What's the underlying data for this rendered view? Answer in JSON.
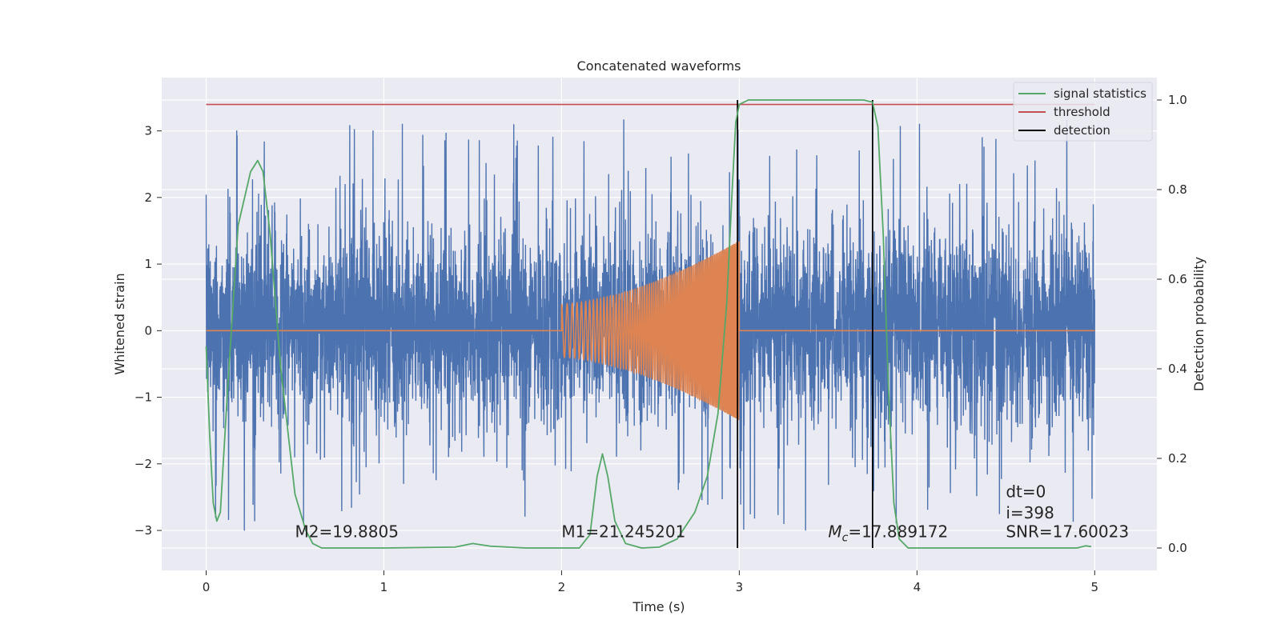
{
  "chart_data": {
    "type": "line",
    "title": "Concatenated waveforms",
    "xlabel": "Time (s)",
    "ylabel": "Whitened strain",
    "ylabel_right": "Detection probability",
    "xlim": [
      -0.25,
      5.35
    ],
    "ylim": [
      -3.6,
      3.8
    ],
    "ylim_right": [
      -0.05,
      1.05
    ],
    "x_ticks": [
      0,
      1,
      2,
      3,
      4,
      5
    ],
    "y_ticks": [
      -3,
      -2,
      -1,
      0,
      1,
      2,
      3
    ],
    "y_ticks_right": [
      0.0,
      0.2,
      0.4,
      0.6,
      0.8,
      1.0
    ],
    "x_tick_labels": [
      "0",
      "1",
      "2",
      "3",
      "4",
      "5"
    ],
    "y_tick_labels": [
      "−3",
      "−2",
      "−1",
      "0",
      "1",
      "2",
      "3"
    ],
    "y_tick_labels_right": [
      "0.0",
      "0.2",
      "0.4",
      "0.6",
      "0.8",
      "1.0"
    ],
    "grid": true,
    "legend_position": "top-right",
    "colors": {
      "background": "#eaeaf2",
      "noise": "#4c72b0",
      "injection": "#dd8452",
      "signal_statistics": "#55a868",
      "threshold": "#c44e52",
      "detection": "#000000"
    },
    "series": [
      {
        "name": "signal statistics",
        "axis": "right",
        "points": [
          [
            0.0,
            0.45
          ],
          [
            0.02,
            0.25
          ],
          [
            0.04,
            0.1
          ],
          [
            0.06,
            0.06
          ],
          [
            0.08,
            0.08
          ],
          [
            0.12,
            0.35
          ],
          [
            0.18,
            0.72
          ],
          [
            0.25,
            0.84
          ],
          [
            0.29,
            0.865
          ],
          [
            0.32,
            0.84
          ],
          [
            0.36,
            0.7
          ],
          [
            0.42,
            0.4
          ],
          [
            0.5,
            0.12
          ],
          [
            0.56,
            0.04
          ],
          [
            0.6,
            0.01
          ],
          [
            0.65,
            0.0
          ],
          [
            1.0,
            0.0
          ],
          [
            1.4,
            0.002
          ],
          [
            1.5,
            0.01
          ],
          [
            1.6,
            0.004
          ],
          [
            1.8,
            0.0
          ],
          [
            2.1,
            0.0
          ],
          [
            2.16,
            0.03
          ],
          [
            2.2,
            0.16
          ],
          [
            2.23,
            0.21
          ],
          [
            2.26,
            0.16
          ],
          [
            2.3,
            0.06
          ],
          [
            2.36,
            0.01
          ],
          [
            2.45,
            0.0
          ],
          [
            2.55,
            0.002
          ],
          [
            2.65,
            0.02
          ],
          [
            2.75,
            0.08
          ],
          [
            2.82,
            0.16
          ],
          [
            2.88,
            0.3
          ],
          [
            2.93,
            0.55
          ],
          [
            2.96,
            0.8
          ],
          [
            2.98,
            0.95
          ],
          [
            3.0,
            0.99
          ],
          [
            3.05,
            1.0
          ],
          [
            3.5,
            1.0
          ],
          [
            3.7,
            1.0
          ],
          [
            3.75,
            0.995
          ],
          [
            3.78,
            0.94
          ],
          [
            3.81,
            0.7
          ],
          [
            3.84,
            0.35
          ],
          [
            3.87,
            0.1
          ],
          [
            3.9,
            0.02
          ],
          [
            3.95,
            0.0
          ],
          [
            4.9,
            0.0
          ],
          [
            4.95,
            0.005
          ],
          [
            4.98,
            0.003
          ]
        ]
      },
      {
        "name": "threshold",
        "axis": "right",
        "value": 0.99
      },
      {
        "name": "detection",
        "axis": "right",
        "x_values": [
          2.99,
          3.75
        ],
        "range": [
          0.0,
          1.0
        ]
      },
      {
        "name": "whitened strain",
        "axis": "left",
        "x_range": [
          0.0,
          5.0
        ],
        "typical_band": [
          -0.6,
          0.75
        ],
        "extreme_range": [
          -3.3,
          3.45
        ]
      },
      {
        "name": "injected waveform",
        "axis": "left",
        "x_range": [
          2.0,
          3.0
        ],
        "amplitude_start": 0.4,
        "amplitude_end": 1.35,
        "frequency_start_hz": 30,
        "frequency_end_hz": 130
      }
    ],
    "annotations": [
      {
        "text": "M2=19.8805",
        "x": 0.5,
        "y": -3.1
      },
      {
        "text": "M1=21.245201",
        "x": 2.0,
        "y": -3.1
      },
      {
        "text": "=17.889172",
        "prefix_symbol": "M",
        "prefix_subscript": "c",
        "x": 3.5,
        "y": -3.1
      },
      {
        "text": "dt=0",
        "x": 4.5,
        "y": -2.5
      },
      {
        "text": "i=398",
        "x": 4.5,
        "y": -2.82
      },
      {
        "text": "SNR=17.60023",
        "x": 4.5,
        "y": -3.1
      }
    ]
  }
}
